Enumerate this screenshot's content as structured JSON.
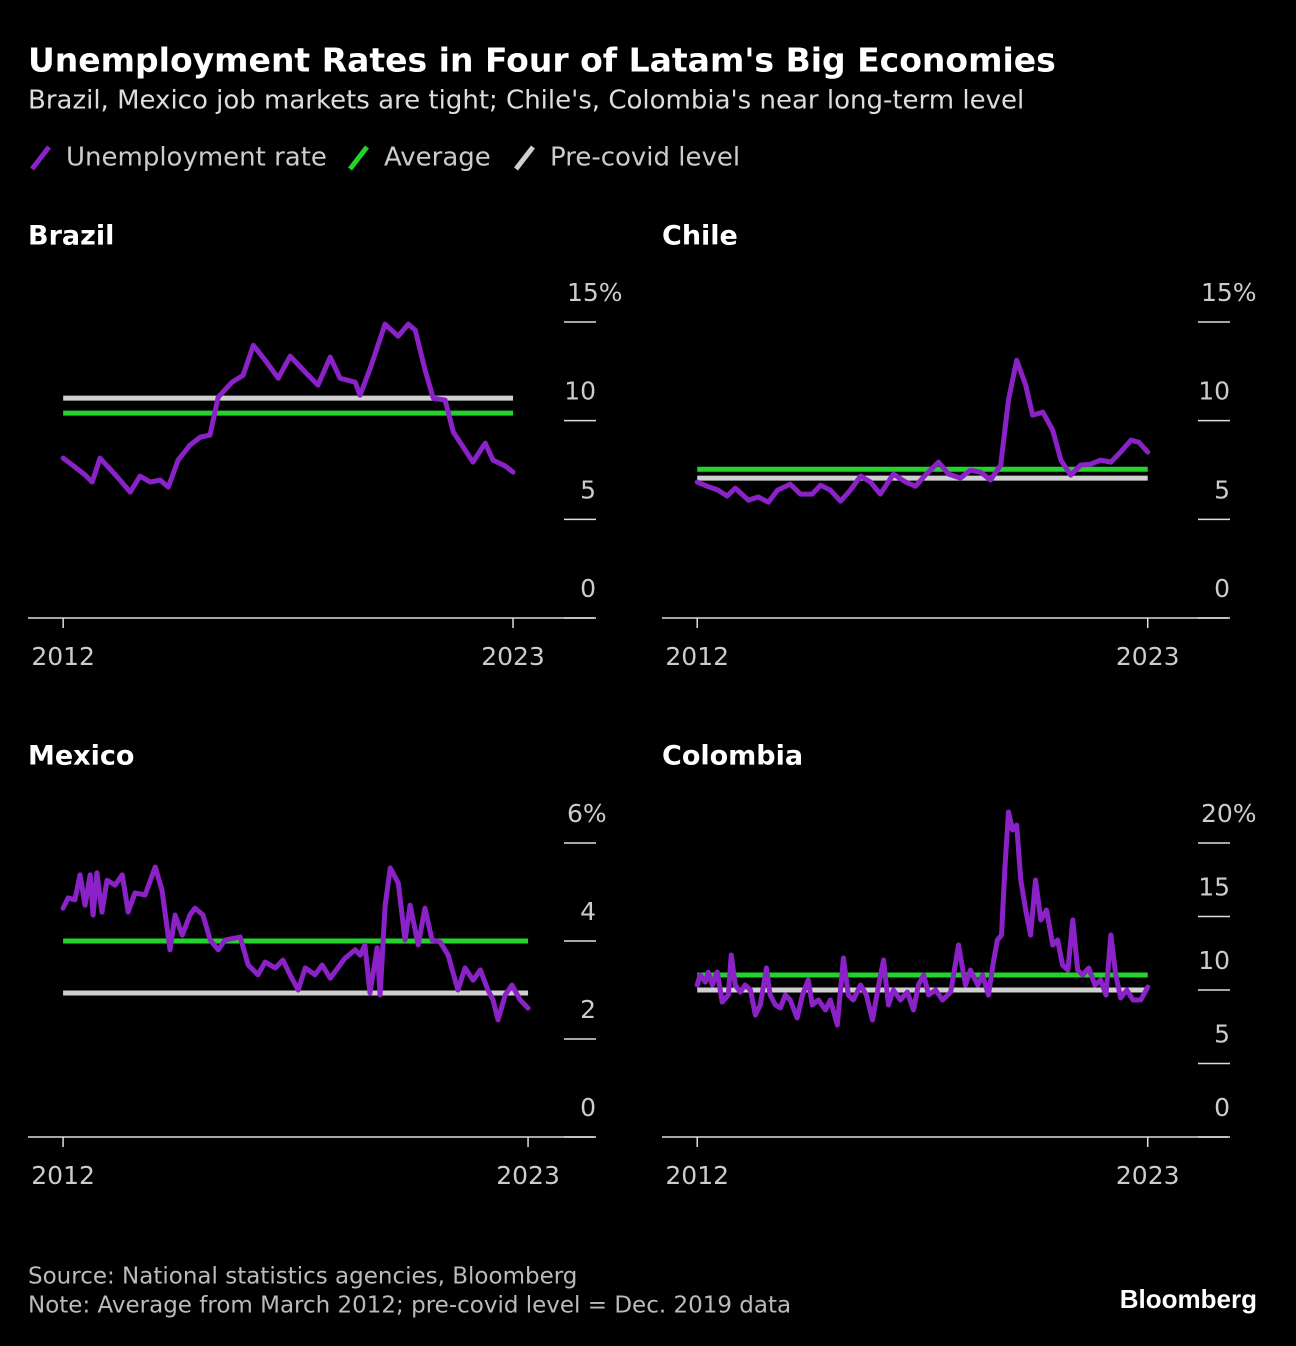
{
  "title": "Unemployment Rates in Four of Latam's Big Economies",
  "subtitle": "Brazil, Mexico job markets are tight; Chile's, Colombia's near long-term level",
  "legend": [
    {
      "name": "Unemployment rate",
      "color": "#8a22c8"
    },
    {
      "name": "Average",
      "color": "#22d32a"
    },
    {
      "name": "Pre-covid level",
      "color": "#cfcfcf"
    }
  ],
  "source": "Source: National statistics agencies, Bloomberg",
  "note": "Note: Average from March 2012; pre-covid level = Dec. 2019 data",
  "brand": "Bloomberg",
  "chart_data": [
    {
      "type": "line",
      "title": "Brazil",
      "x": [
        2012.0,
        2012.29,
        2012.54,
        2012.71,
        2012.9,
        2013.15,
        2013.39,
        2013.64,
        2013.88,
        2014.13,
        2014.37,
        2014.57,
        2014.81,
        2015.1,
        2015.35,
        2015.59,
        2015.79,
        2016.13,
        2016.4,
        2016.65,
        2016.94,
        2017.26,
        2017.55,
        2017.92,
        2018.23,
        2018.53,
        2018.77,
        2019.14,
        2019.26,
        2019.51,
        2019.87,
        2020.19,
        2020.44,
        2020.61,
        2020.85,
        2021.05,
        2021.34,
        2021.54,
        2021.83,
        2022.02,
        2022.32,
        2022.51,
        2022.81,
        2023.0
      ],
      "values": [
        8.1,
        7.65,
        7.24,
        6.89,
        8.1,
        7.54,
        6.99,
        6.38,
        7.19,
        6.89,
        6.99,
        6.63,
        8.0,
        8.76,
        9.16,
        9.27,
        11.19,
        11.95,
        12.3,
        13.82,
        13.06,
        12.15,
        13.27,
        12.46,
        11.8,
        13.22,
        12.15,
        11.95,
        11.29,
        12.66,
        14.89,
        14.28,
        14.89,
        14.58,
        12.56,
        11.14,
        11.04,
        9.42,
        8.51,
        7.9,
        8.86,
        8.0,
        7.7,
        7.39
      ],
      "average": 10.38,
      "pre_covid_level": 11.14,
      "xlim": [
        2011.14,
        2024.98
      ],
      "xticks": [
        2012,
        2023
      ],
      "ylim": [
        0,
        15
      ],
      "yticks": [
        0,
        5,
        10,
        {
          "value": 15,
          "label": "15%"
        }
      ]
    },
    {
      "type": "line",
      "title": "Chile",
      "x": [
        2012.0,
        2012.24,
        2012.51,
        2012.73,
        2012.93,
        2013.25,
        2013.49,
        2013.74,
        2013.96,
        2014.27,
        2014.52,
        2014.81,
        2015.01,
        2015.25,
        2015.5,
        2015.74,
        2015.99,
        2016.23,
        2016.47,
        2016.79,
        2017.09,
        2017.33,
        2017.57,
        2017.89,
        2018.14,
        2018.43,
        2018.67,
        2018.92,
        2019.16,
        2019.41,
        2019.6,
        2019.8,
        2020.02,
        2020.19,
        2020.44,
        2020.68,
        2020.88,
        2021.12,
        2021.36,
        2021.61,
        2021.85,
        2022.1,
        2022.34,
        2022.59,
        2022.78,
        2023.0
      ],
      "values": [
        6.89,
        6.68,
        6.48,
        6.18,
        6.58,
        5.97,
        6.13,
        5.87,
        6.48,
        6.78,
        6.28,
        6.28,
        6.73,
        6.48,
        5.92,
        6.48,
        7.19,
        6.89,
        6.28,
        7.29,
        6.89,
        6.68,
        7.24,
        7.9,
        7.29,
        7.09,
        7.49,
        7.39,
        6.99,
        7.75,
        11.04,
        13.06,
        11.8,
        10.28,
        10.43,
        9.52,
        8.0,
        7.24,
        7.75,
        7.8,
        8.0,
        7.9,
        8.41,
        9.01,
        8.91,
        8.41
      ],
      "average": 7.54,
      "pre_covid_level": 7.09,
      "xlim": [
        2011.14,
        2024.96
      ],
      "xticks": [
        2012,
        2023
      ],
      "ylim": [
        0,
        15
      ],
      "yticks": [
        0,
        5,
        10,
        {
          "value": 15,
          "label": "15%"
        }
      ]
    },
    {
      "type": "line",
      "title": "Mexico",
      "x": [
        2012.0,
        2012.12,
        2012.28,
        2012.4,
        2012.52,
        2012.64,
        2012.71,
        2012.8,
        2012.92,
        2013.04,
        2013.23,
        2013.4,
        2013.54,
        2013.7,
        2013.94,
        2014.18,
        2014.34,
        2014.53,
        2014.65,
        2014.82,
        2015.0,
        2015.12,
        2015.31,
        2015.48,
        2015.67,
        2015.83,
        2016.19,
        2016.38,
        2016.61,
        2016.78,
        2017.02,
        2017.2,
        2017.37,
        2017.56,
        2017.73,
        2017.96,
        2018.13,
        2018.32,
        2018.55,
        2018.67,
        2018.91,
        2019.03,
        2019.14,
        2019.26,
        2019.43,
        2019.5,
        2019.62,
        2019.74,
        2019.93,
        2020.09,
        2020.21,
        2020.4,
        2020.56,
        2020.73,
        2020.92,
        2021.11,
        2021.34,
        2021.51,
        2021.7,
        2021.87,
        2022.05,
        2022.17,
        2022.29,
        2022.46,
        2022.62,
        2022.81,
        2023.0
      ],
      "values": [
        4.67,
        4.88,
        4.84,
        5.35,
        4.73,
        5.35,
        4.53,
        5.39,
        4.59,
        5.24,
        5.14,
        5.35,
        4.59,
        4.98,
        4.94,
        5.51,
        5.04,
        3.82,
        4.53,
        4.12,
        4.53,
        4.67,
        4.53,
        4.02,
        3.82,
        4.02,
        4.08,
        3.51,
        3.31,
        3.57,
        3.45,
        3.61,
        3.31,
        3.0,
        3.45,
        3.31,
        3.51,
        3.24,
        3.51,
        3.65,
        3.82,
        3.71,
        3.92,
        2.94,
        3.86,
        2.9,
        4.73,
        5.49,
        5.18,
        4.02,
        4.73,
        3.92,
        4.67,
        4.02,
        3.98,
        3.71,
        3.0,
        3.45,
        3.2,
        3.41,
        3.0,
        2.8,
        2.39,
        2.9,
        3.1,
        2.8,
        2.63
      ],
      "average": 4.0,
      "pre_covid_level": 2.94,
      "xlim": [
        2011.17,
        2024.56
      ],
      "xticks": [
        2012,
        2023
      ],
      "ylim": [
        0,
        6
      ],
      "yticks": [
        0,
        2,
        4,
        {
          "value": 6,
          "label": "6%"
        }
      ]
    },
    {
      "type": "line",
      "title": "Colombia",
      "x": [
        2012.0,
        2012.07,
        2012.2,
        2012.27,
        2012.37,
        2012.49,
        2012.61,
        2012.76,
        2012.83,
        2012.93,
        2013.05,
        2013.17,
        2013.3,
        2013.42,
        2013.54,
        2013.69,
        2013.78,
        2013.91,
        2014.03,
        2014.15,
        2014.27,
        2014.44,
        2014.57,
        2014.71,
        2014.81,
        2014.96,
        2015.13,
        2015.25,
        2015.42,
        2015.57,
        2015.69,
        2015.81,
        2015.99,
        2016.13,
        2016.28,
        2016.43,
        2016.55,
        2016.67,
        2016.79,
        2016.96,
        2017.13,
        2017.28,
        2017.4,
        2017.53,
        2017.65,
        2017.82,
        2017.99,
        2018.19,
        2018.38,
        2018.55,
        2018.67,
        2018.85,
        2018.97,
        2019.11,
        2019.24,
        2019.33,
        2019.43,
        2019.51,
        2019.6,
        2019.7,
        2019.8,
        2019.9,
        2020.02,
        2020.14,
        2020.26,
        2020.39,
        2020.53,
        2020.68,
        2020.8,
        2020.92,
        2021.05,
        2021.17,
        2021.29,
        2021.41,
        2021.56,
        2021.71,
        2021.85,
        2021.98,
        2022.1,
        2022.22,
        2022.34,
        2022.49,
        2022.64,
        2022.83,
        2023.0
      ],
      "values": [
        10.34,
        11.02,
        10.54,
        11.22,
        10.34,
        11.22,
        9.18,
        9.66,
        12.38,
        10.34,
        9.86,
        10.34,
        10.0,
        8.3,
        8.98,
        11.5,
        9.66,
        8.98,
        8.78,
        9.66,
        9.32,
        8.1,
        9.66,
        10.68,
        8.98,
        9.32,
        8.64,
        9.32,
        7.62,
        12.18,
        9.66,
        9.32,
        10.34,
        9.66,
        7.96,
        10.34,
        12.04,
        8.98,
        10.0,
        9.32,
        9.86,
        8.64,
        10.34,
        11.02,
        9.66,
        10.0,
        9.32,
        9.86,
        13.06,
        10.34,
        11.36,
        10.34,
        11.02,
        9.66,
        12.04,
        13.4,
        13.74,
        18.16,
        22.11,
        20.88,
        21.22,
        17.48,
        15.44,
        13.74,
        17.48,
        14.76,
        15.44,
        13.06,
        13.4,
        11.7,
        11.36,
        14.76,
        11.36,
        11.02,
        11.5,
        10.34,
        10.68,
        9.66,
        13.74,
        11.02,
        9.46,
        10.0,
        9.32,
        9.32,
        10.2
      ],
      "average": 11.02,
      "pre_covid_level": 10.0,
      "xlim": [
        2011.14,
        2024.96
      ],
      "xticks": [
        2012,
        2023
      ],
      "ylim": [
        0,
        20
      ],
      "yticks": [
        0,
        5,
        10,
        15,
        {
          "value": 20,
          "label": "20%"
        }
      ]
    }
  ]
}
